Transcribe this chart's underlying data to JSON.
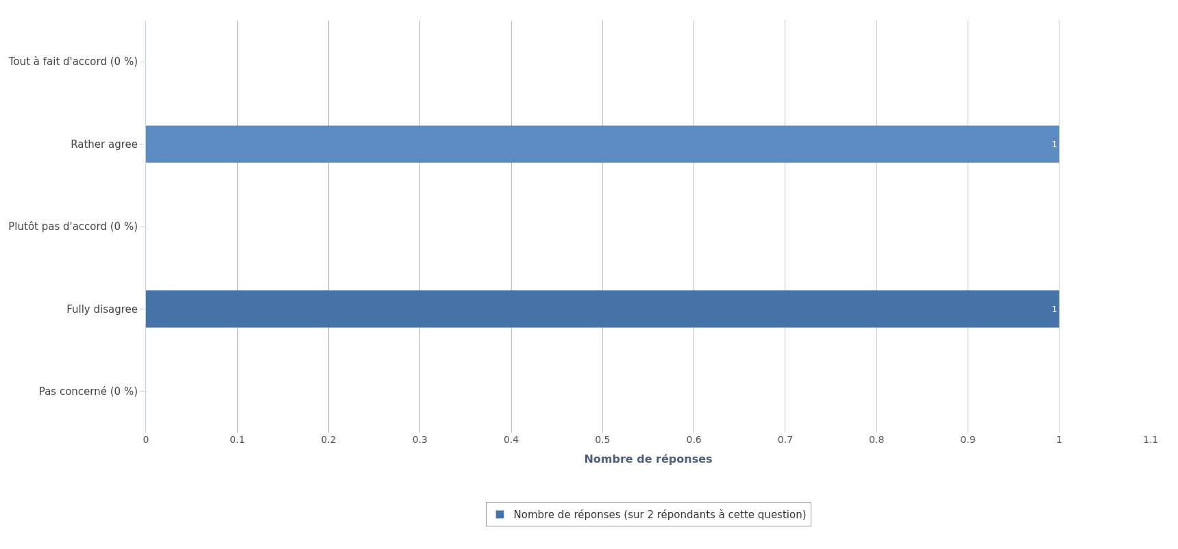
{
  "chart_data": {
    "type": "bar",
    "orientation": "horizontal",
    "categories": [
      "Tout à fait d'accord (0 %)",
      "Rather agree",
      "Plutôt pas d'accord (0 %)",
      "Fully disagree",
      "Pas concerné (0 %)"
    ],
    "series": [
      {
        "name": "Nombre de réponses (sur 2 répondants à cette question)",
        "color": "#4572a7",
        "colors": [
          "#5b8bc0",
          "#5b8bc0",
          "#4572a7",
          "#4572a7",
          "#4572a7"
        ],
        "values": [
          0,
          1,
          0,
          1,
          0
        ],
        "value_labels": [
          null,
          "1",
          null,
          "1",
          null
        ]
      }
    ],
    "xlabel": "Nombre de réponses",
    "xlim": [
      0,
      1.1
    ],
    "xticks": [
      0,
      0.1,
      0.2,
      0.3,
      0.4,
      0.5,
      0.6,
      0.7,
      0.8,
      0.9,
      1,
      1.1
    ],
    "grid": "x",
    "legend": "bottom"
  }
}
